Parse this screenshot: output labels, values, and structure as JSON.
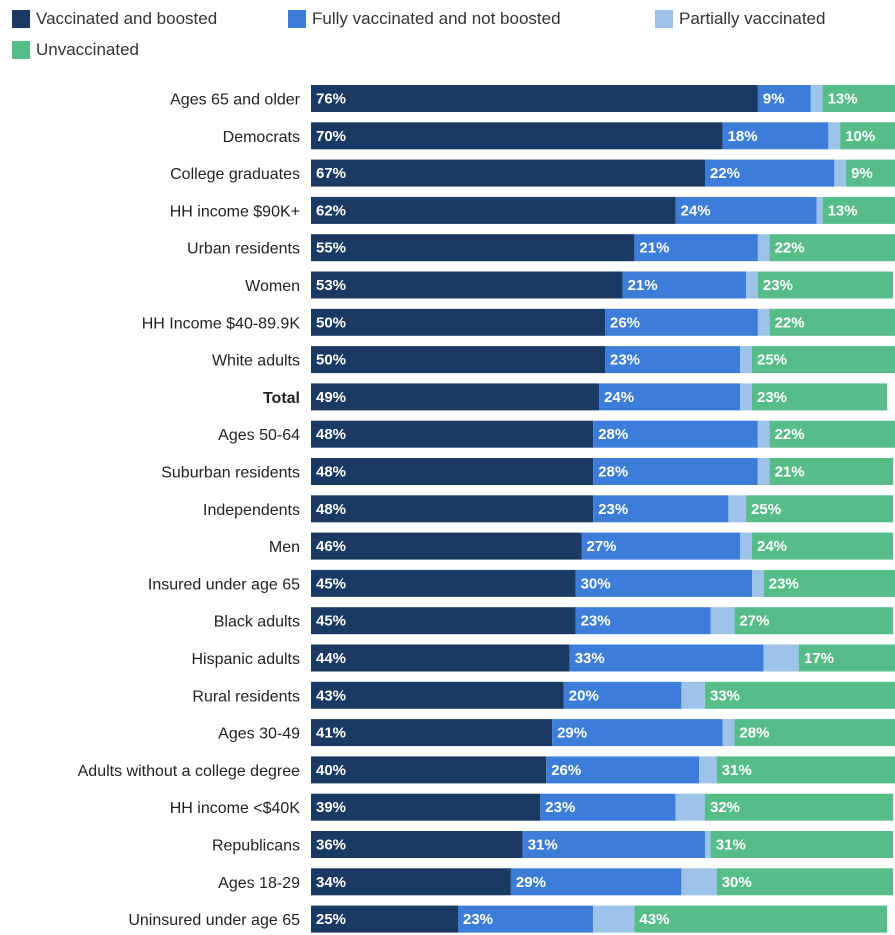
{
  "colors": {
    "vaccinated_boosted": "#1a3a63",
    "fully_not_boosted": "#3b7dd8",
    "partial": "#9dc3e8",
    "unvaccinated": "#56bc88"
  },
  "legend": [
    {
      "label": "Vaccinated and boosted",
      "color": "#1a3a63"
    },
    {
      "label": "Fully vaccinated and not boosted",
      "color": "#3b7dd8"
    },
    {
      "label": "Partially vaccinated",
      "color": "#9dc3e8"
    },
    {
      "label": "Unvaccinated",
      "color": "#56bc88"
    }
  ],
  "chart_data": {
    "type": "bar",
    "orientation": "horizontal",
    "stacked": true,
    "title": "",
    "xlabel": "",
    "ylabel": "",
    "xlim": [
      0,
      100
    ],
    "grid": false,
    "legend_position": "top",
    "bold_categories": [
      "Total"
    ],
    "categories": [
      "Ages 65 and older",
      "Democrats",
      "College graduates",
      "HH income $90K+",
      "Urban residents",
      "Women",
      "HH Income $40-89.9K",
      "White adults",
      "Total",
      "Ages 50-64",
      "Suburban residents",
      "Independents",
      "Men",
      "Insured under age 65",
      "Black adults",
      "Hispanic adults",
      "Rural residents",
      "Ages 30-49",
      "Adults without a college degree",
      "HH income <$40K",
      "Republicans",
      "Ages 18-29",
      "Uninsured under age 65"
    ],
    "series": [
      {
        "name": "Vaccinated and boosted",
        "color": "#1a3a63",
        "values": [
          76,
          70,
          67,
          62,
          55,
          53,
          50,
          50,
          49,
          48,
          48,
          48,
          46,
          45,
          45,
          44,
          43,
          41,
          40,
          39,
          36,
          34,
          25
        ]
      },
      {
        "name": "Fully vaccinated and not boosted",
        "color": "#3b7dd8",
        "values": [
          9,
          18,
          22,
          24,
          21,
          21,
          26,
          23,
          24,
          28,
          28,
          23,
          27,
          30,
          23,
          33,
          20,
          29,
          26,
          23,
          31,
          29,
          23
        ]
      },
      {
        "name": "Partially vaccinated",
        "color": "#9dc3e8",
        "values": [
          2,
          2,
          2,
          1,
          2,
          2,
          2,
          2,
          2,
          2,
          2,
          3,
          2,
          2,
          4,
          6,
          4,
          2,
          3,
          5,
          1,
          6,
          7
        ]
      },
      {
        "name": "Unvaccinated",
        "color": "#56bc88",
        "values": [
          13,
          10,
          9,
          13,
          22,
          23,
          22,
          25,
          23,
          22,
          21,
          25,
          24,
          23,
          27,
          17,
          33,
          28,
          31,
          32,
          31,
          30,
          43
        ]
      }
    ],
    "labeled_series": [
      0,
      1,
      3
    ]
  }
}
